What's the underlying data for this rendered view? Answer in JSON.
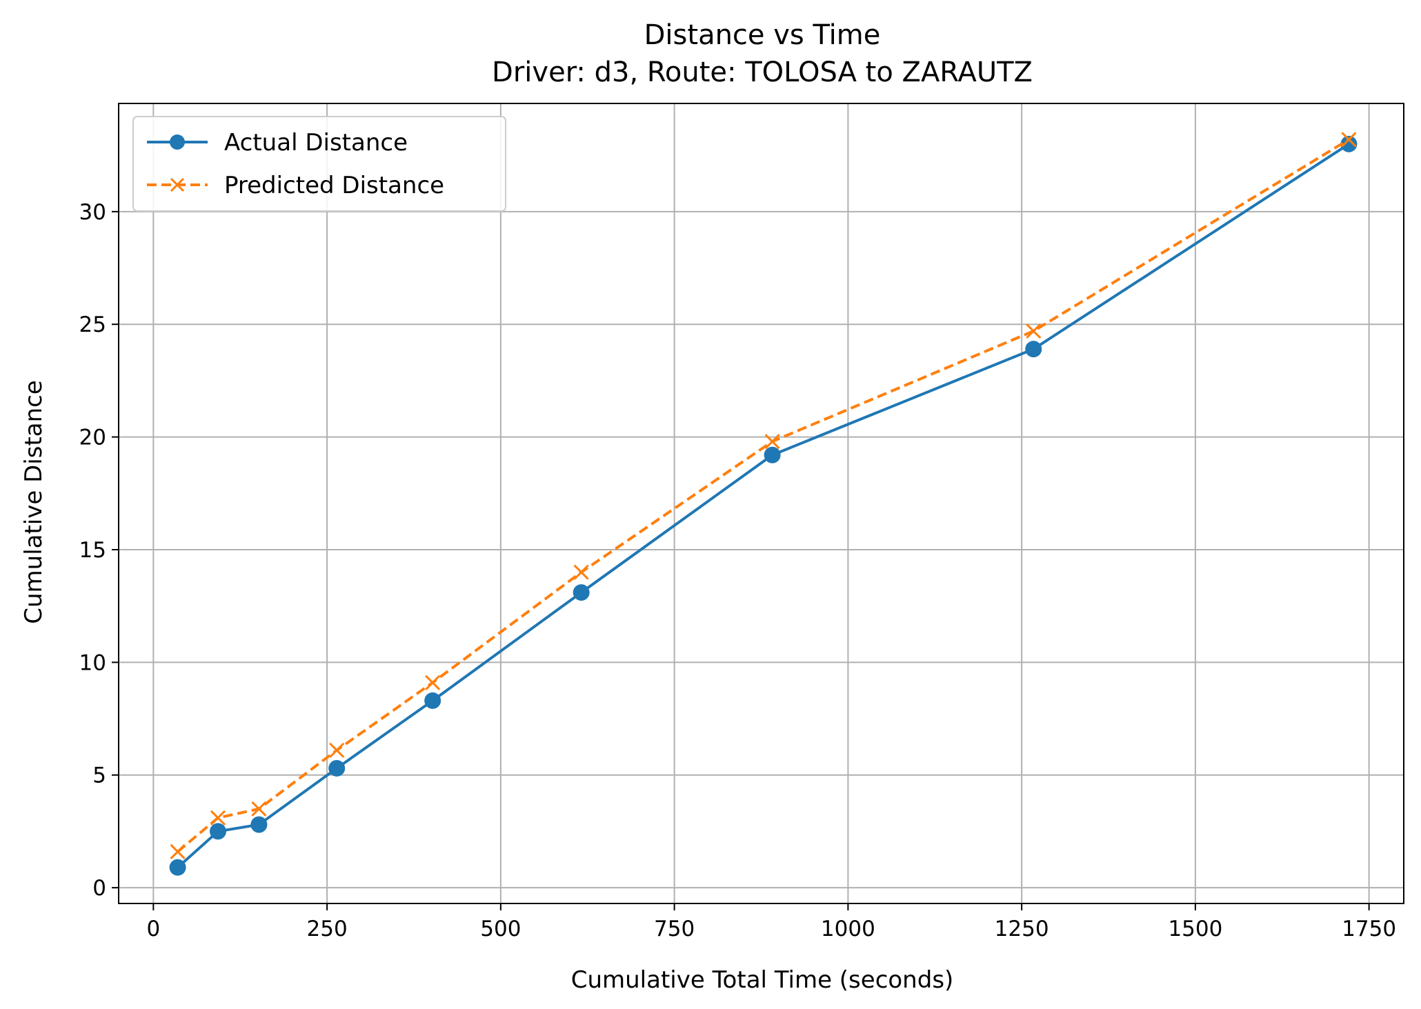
{
  "chart_data": {
    "type": "line",
    "title": "Distance vs Time",
    "subtitle": "Driver: d3, Route: TOLOSA to ZARAUTZ",
    "xlabel": "Cumulative Total Time (seconds)",
    "ylabel": "Cumulative Distance",
    "xlim": [
      -50,
      1800
    ],
    "ylim": [
      -0.7,
      34.8
    ],
    "xticks": [
      0,
      250,
      500,
      750,
      1000,
      1250,
      1500,
      1750
    ],
    "yticks": [
      0,
      5,
      10,
      15,
      20,
      25,
      30
    ],
    "grid": true,
    "legend_position": "top-left",
    "series": [
      {
        "name": "Actual Distance",
        "color": "#1f77b4",
        "style": "solid",
        "marker": "circle",
        "points": [
          {
            "x": 35,
            "y": 0.9
          },
          {
            "x": 93,
            "y": 2.5
          },
          {
            "x": 152,
            "y": 2.8
          },
          {
            "x": 264,
            "y": 5.3
          },
          {
            "x": 402,
            "y": 8.3
          },
          {
            "x": 616,
            "y": 13.1
          },
          {
            "x": 891,
            "y": 19.2
          },
          {
            "x": 1267,
            "y": 23.9
          },
          {
            "x": 1721,
            "y": 33.0
          }
        ]
      },
      {
        "name": "Predicted Distance",
        "color": "#ff7f0e",
        "style": "dashed",
        "marker": "x",
        "points": [
          {
            "x": 35,
            "y": 1.6
          },
          {
            "x": 93,
            "y": 3.1
          },
          {
            "x": 152,
            "y": 3.5
          },
          {
            "x": 264,
            "y": 6.1
          },
          {
            "x": 402,
            "y": 9.1
          },
          {
            "x": 616,
            "y": 14.0
          },
          {
            "x": 891,
            "y": 19.8
          },
          {
            "x": 1267,
            "y": 24.7
          },
          {
            "x": 1721,
            "y": 33.2
          }
        ]
      }
    ]
  }
}
